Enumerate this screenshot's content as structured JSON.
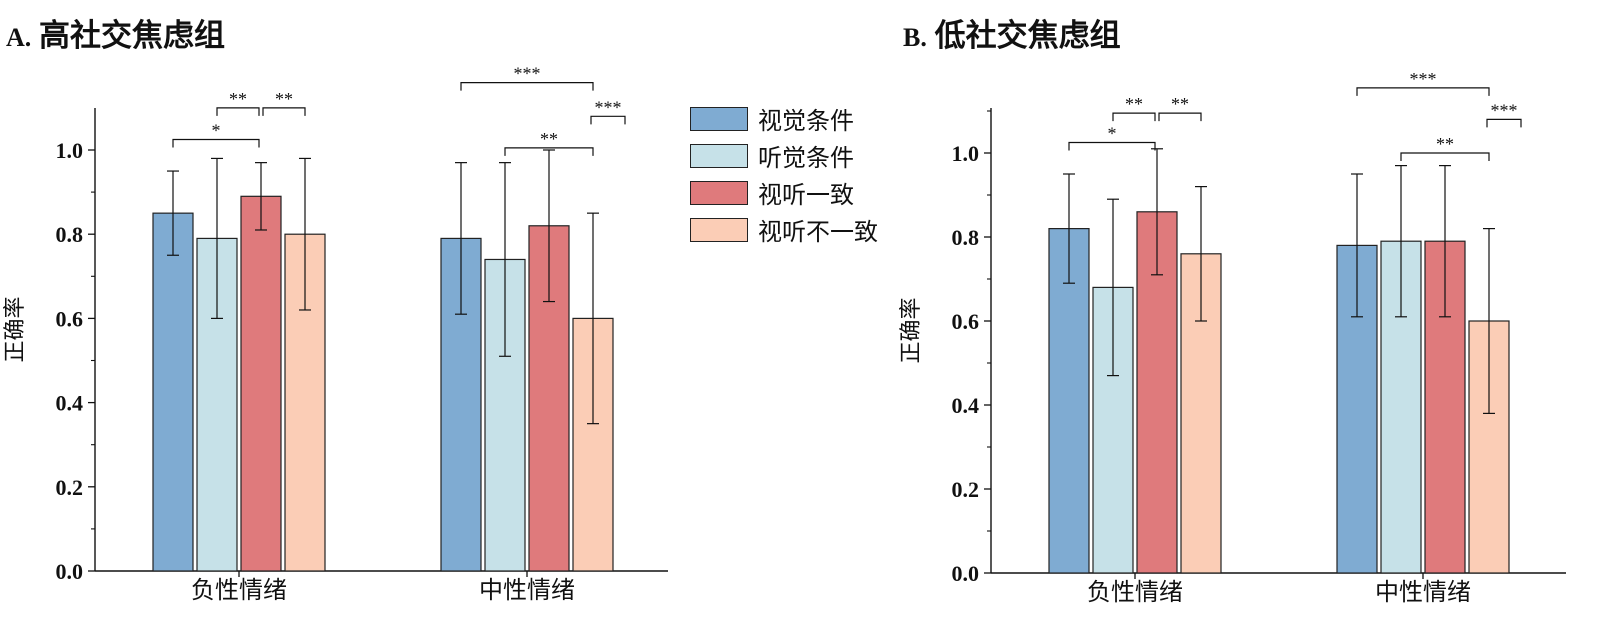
{
  "panels": [
    {
      "title_letter": "A.",
      "title_text": "高社交焦虑组"
    },
    {
      "title_letter": "B.",
      "title_text": "低社交焦虑组"
    }
  ],
  "legend": [
    {
      "label": "视觉条件",
      "color": "#7fabd2"
    },
    {
      "label": "听觉条件",
      "color": "#c6e1e8"
    },
    {
      "label": "视听一致",
      "color": "#df7a7c"
    },
    {
      "label": "视听不一致",
      "color": "#fbcdb6"
    }
  ],
  "chart_data": [
    {
      "type": "bar",
      "title": "A. 高社交焦虑组",
      "ylabel": "正确率",
      "xlabel": "",
      "ylim": [
        0,
        1.1
      ],
      "yticks": [
        "0.0",
        "0.2",
        "0.4",
        "0.6",
        "0.8",
        "1.0"
      ],
      "categories": [
        "负性情绪",
        "中性情绪"
      ],
      "series": [
        {
          "name": "视觉条件",
          "values": [
            0.85,
            0.79
          ],
          "err_low": [
            0.75,
            0.61
          ],
          "err_high": [
            0.95,
            0.97
          ]
        },
        {
          "name": "听觉条件",
          "values": [
            0.79,
            0.74
          ],
          "err_low": [
            0.6,
            0.51
          ],
          "err_high": [
            0.98,
            0.97
          ]
        },
        {
          "name": "视听一致",
          "values": [
            0.89,
            0.82
          ],
          "err_low": [
            0.81,
            0.64
          ],
          "err_high": [
            0.97,
            1.0
          ]
        },
        {
          "name": "视听不一致",
          "values": [
            0.8,
            0.6
          ],
          "err_low": [
            0.62,
            0.35
          ],
          "err_high": [
            0.98,
            0.85
          ]
        }
      ],
      "significance": [
        {
          "category": 0,
          "from": 0,
          "to": 2,
          "label": "*",
          "y": 1.025
        },
        {
          "category": 0,
          "from": 1,
          "to": 2,
          "label": "**",
          "y": 1.1
        },
        {
          "category": 0,
          "from": 2,
          "to": 3,
          "label": "**",
          "y": 1.1
        },
        {
          "category": 1,
          "from": 0,
          "to": 3,
          "label": "***",
          "y": 1.16
        },
        {
          "category": 1,
          "from": 3,
          "to": 3,
          "label": "***",
          "y": 1.08
        },
        {
          "category": 1,
          "from": 1,
          "to": 3,
          "label": "**",
          "y": 1.005
        }
      ]
    },
    {
      "type": "bar",
      "title": "B. 低社交焦虑组",
      "ylabel": "正确率",
      "xlabel": "",
      "ylim": [
        0,
        1.1
      ],
      "yticks": [
        "0.0",
        "0.2",
        "0.4",
        "0.6",
        "0.8",
        "1.0"
      ],
      "categories": [
        "负性情绪",
        "中性情绪"
      ],
      "series": [
        {
          "name": "视觉条件",
          "values": [
            0.82,
            0.78
          ],
          "err_low": [
            0.69,
            0.61
          ],
          "err_high": [
            0.95,
            0.95
          ]
        },
        {
          "name": "听觉条件",
          "values": [
            0.68,
            0.79
          ],
          "err_low": [
            0.47,
            0.61
          ],
          "err_high": [
            0.89,
            0.97
          ]
        },
        {
          "name": "视听一致",
          "values": [
            0.86,
            0.79
          ],
          "err_low": [
            0.71,
            0.61
          ],
          "err_high": [
            1.01,
            0.97
          ]
        },
        {
          "name": "视听不一致",
          "values": [
            0.76,
            0.6
          ],
          "err_low": [
            0.6,
            0.38
          ],
          "err_high": [
            0.92,
            0.82
          ]
        }
      ],
      "significance": [
        {
          "category": 0,
          "from": 0,
          "to": 2,
          "label": "*",
          "y": 1.025
        },
        {
          "category": 0,
          "from": 1,
          "to": 2,
          "label": "**",
          "y": 1.095
        },
        {
          "category": 0,
          "from": 2,
          "to": 3,
          "label": "**",
          "y": 1.095
        },
        {
          "category": 1,
          "from": 0,
          "to": 3,
          "label": "***",
          "y": 1.155
        },
        {
          "category": 1,
          "from": 3,
          "to": 3,
          "label": "***",
          "y": 1.08
        },
        {
          "category": 1,
          "from": 1,
          "to": 3,
          "label": "**",
          "y": 1.0
        }
      ]
    }
  ]
}
